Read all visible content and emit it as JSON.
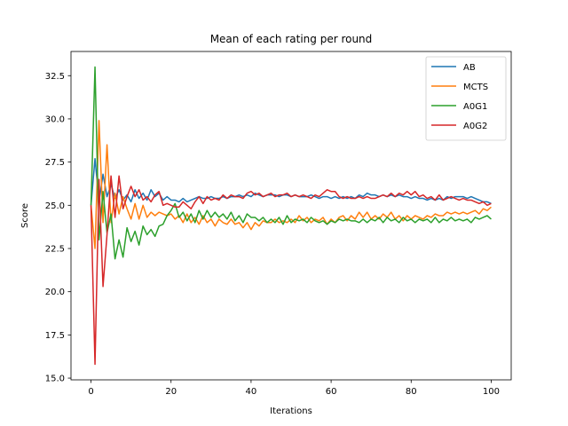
{
  "chart_data": {
    "type": "line",
    "title": "Mean of each rating per round",
    "xlabel": "Iterations",
    "ylabel": "Score",
    "xlim": [
      -5,
      105
    ],
    "ylim": [
      14.9,
      33.9
    ],
    "xticks": [
      0,
      20,
      40,
      60,
      80,
      100
    ],
    "yticks": [
      15.0,
      17.5,
      20.0,
      22.5,
      25.0,
      27.5,
      30.0,
      32.5
    ],
    "ytick_labels": [
      "15.0",
      "17.5",
      "20.0",
      "22.5",
      "25.0",
      "27.5",
      "30.0",
      "32.5"
    ],
    "xtick_labels": [
      "0",
      "20",
      "40",
      "60",
      "80",
      "100"
    ],
    "grid": false,
    "legend_position": "top-right",
    "series": [
      {
        "name": "AB",
        "color": "#1f77b4",
        "values": [
          25.0,
          27.7,
          25.2,
          26.8,
          25.5,
          26.2,
          25.4,
          25.9,
          25.3,
          25.6,
          25.2,
          25.9,
          25.4,
          25.7,
          25.3,
          25.9,
          25.5,
          25.7,
          25.3,
          25.5,
          25.3,
          25.3,
          25.2,
          25.4,
          25.2,
          25.3,
          25.4,
          25.5,
          25.4,
          25.4,
          25.5,
          25.4,
          25.4,
          25.5,
          25.4,
          25.5,
          25.5,
          25.6,
          25.5,
          25.6,
          25.5,
          25.7,
          25.6,
          25.5,
          25.6,
          25.6,
          25.6,
          25.5,
          25.6,
          25.6,
          25.5,
          25.6,
          25.5,
          25.5,
          25.5,
          25.6,
          25.5,
          25.4,
          25.5,
          25.5,
          25.4,
          25.5,
          25.4,
          25.5,
          25.4,
          25.5,
          25.4,
          25.6,
          25.5,
          25.7,
          25.6,
          25.6,
          25.5,
          25.6,
          25.5,
          25.6,
          25.5,
          25.6,
          25.5,
          25.5,
          25.4,
          25.5,
          25.4,
          25.4,
          25.3,
          25.4,
          25.3,
          25.4,
          25.3,
          25.5,
          25.4,
          25.5,
          25.5,
          25.5,
          25.4,
          25.5,
          25.4,
          25.3,
          25.2,
          25.2,
          25.1
        ]
      },
      {
        "name": "MCTS",
        "color": "#ff7f0e",
        "values": [
          25.0,
          22.5,
          29.9,
          24.0,
          28.5,
          24.0,
          25.7,
          24.5,
          25.5,
          24.8,
          24.2,
          25.1,
          24.2,
          25.0,
          24.3,
          24.6,
          24.4,
          24.6,
          24.5,
          24.4,
          24.5,
          24.2,
          24.4,
          24.0,
          24.5,
          24.0,
          24.3,
          23.9,
          24.4,
          24.0,
          24.2,
          23.8,
          24.2,
          24.0,
          23.9,
          24.2,
          23.9,
          24.0,
          23.7,
          24.0,
          23.6,
          24.0,
          23.8,
          24.1,
          24.0,
          24.0,
          24.2,
          24.0,
          24.1,
          24.0,
          24.2,
          24.0,
          24.4,
          24.1,
          24.3,
          24.0,
          24.2,
          24.1,
          24.3,
          23.9,
          24.2,
          24.0,
          24.3,
          24.4,
          24.1,
          24.4,
          24.2,
          24.6,
          24.3,
          24.6,
          24.2,
          24.4,
          24.2,
          24.5,
          24.3,
          24.6,
          24.2,
          24.4,
          24.1,
          24.4,
          24.2,
          24.4,
          24.3,
          24.2,
          24.4,
          24.3,
          24.5,
          24.4,
          24.4,
          24.6,
          24.5,
          24.6,
          24.5,
          24.6,
          24.5,
          24.6,
          24.7,
          24.5,
          24.8,
          24.7,
          24.9
        ]
      },
      {
        "name": "A0G1",
        "color": "#2ca02c",
        "values": [
          25.0,
          33.0,
          23.0,
          25.8,
          23.4,
          24.5,
          21.9,
          23.0,
          22.0,
          23.7,
          22.9,
          23.5,
          22.7,
          23.8,
          23.3,
          23.6,
          23.2,
          23.8,
          23.9,
          24.4,
          24.7,
          25.1,
          24.3,
          24.6,
          24.1,
          24.5,
          24.0,
          24.7,
          24.2,
          24.7,
          24.3,
          24.6,
          24.3,
          24.5,
          24.2,
          24.6,
          24.1,
          24.4,
          24.0,
          24.5,
          24.3,
          24.3,
          24.1,
          24.3,
          24.0,
          24.2,
          24.0,
          24.3,
          23.9,
          24.4,
          24.0,
          24.2,
          24.1,
          24.2,
          24.0,
          24.3,
          24.1,
          24.0,
          24.1,
          23.9,
          24.1,
          24.0,
          24.2,
          24.1,
          24.2,
          24.1,
          24.1,
          24.0,
          24.2,
          24.0,
          24.2,
          24.1,
          24.3,
          24.0,
          24.3,
          24.1,
          24.2,
          24.0,
          24.3,
          24.1,
          24.2,
          24.0,
          24.2,
          24.1,
          24.2,
          24.0,
          24.3,
          24.0,
          24.2,
          24.1,
          24.3,
          24.1,
          24.2,
          24.1,
          24.2,
          24.0,
          24.3,
          24.2,
          24.3,
          24.4,
          24.2
        ]
      },
      {
        "name": "A0G2",
        "color": "#d62728",
        "values": [
          25.0,
          15.8,
          26.5,
          20.3,
          23.3,
          26.7,
          24.3,
          26.7,
          24.8,
          25.5,
          26.1,
          25.5,
          25.9,
          25.3,
          25.5,
          25.2,
          25.6,
          25.8,
          25.0,
          25.1,
          25.0,
          24.9,
          24.9,
          25.2,
          25.0,
          24.8,
          25.2,
          25.5,
          25.1,
          25.5,
          25.3,
          25.4,
          25.3,
          25.6,
          25.4,
          25.6,
          25.5,
          25.5,
          25.4,
          25.7,
          25.8,
          25.6,
          25.7,
          25.5,
          25.6,
          25.7,
          25.5,
          25.6,
          25.6,
          25.7,
          25.5,
          25.6,
          25.5,
          25.6,
          25.5,
          25.4,
          25.6,
          25.5,
          25.7,
          25.9,
          25.8,
          25.8,
          25.5,
          25.4,
          25.5,
          25.4,
          25.4,
          25.5,
          25.4,
          25.5,
          25.4,
          25.4,
          25.5,
          25.6,
          25.5,
          25.7,
          25.5,
          25.7,
          25.6,
          25.8,
          25.6,
          25.8,
          25.5,
          25.6,
          25.4,
          25.5,
          25.3,
          25.6,
          25.3,
          25.4,
          25.5,
          25.4,
          25.3,
          25.4,
          25.3,
          25.3,
          25.2,
          25.1,
          25.2,
          25.0,
          25.1
        ]
      }
    ]
  }
}
